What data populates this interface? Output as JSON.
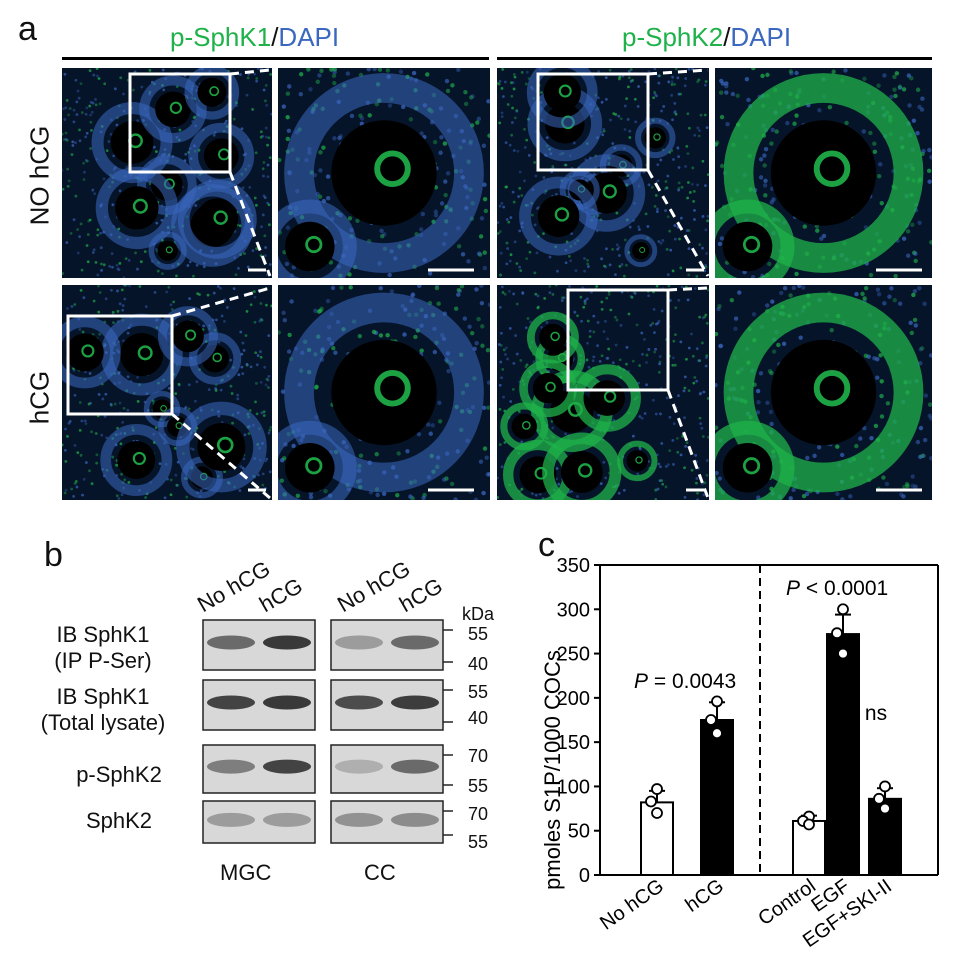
{
  "panel_a": {
    "letter": "a",
    "headers": [
      {
        "marker": "p-SphK1",
        "sep": "/",
        "stain": "DAPI"
      },
      {
        "marker": "p-SphK2",
        "sep": "/",
        "stain": "DAPI"
      }
    ],
    "row_labels": [
      "NO hCG",
      "hCG"
    ],
    "colors": {
      "marker_green": "#1fb24a",
      "dapi_blue": "#3a68c0",
      "background": "#06142a"
    }
  },
  "panel_b": {
    "letter": "b",
    "lanes": [
      "No hCG",
      "hCG"
    ],
    "mw_unit": "kDa",
    "blot_rows": [
      {
        "label_line1": "IB SphK1",
        "label_line2": "(IP P-Ser)",
        "mw_top": "55",
        "mw_bottom": "40"
      },
      {
        "label_line1": "IB SphK1",
        "label_line2": "(Total  lysate)",
        "mw_top": "55",
        "mw_bottom": "40"
      },
      {
        "label_line1": "p-SphK2",
        "label_line2": "",
        "mw_top": "70",
        "mw_bottom": "55"
      },
      {
        "label_line1": "SphK2",
        "label_line2": "",
        "mw_top": "70",
        "mw_bottom": "55"
      }
    ],
    "groups": [
      "MGC",
      "CC"
    ]
  },
  "panel_c": {
    "letter": "c",
    "chart_data": {
      "type": "bar",
      "ylabel": "pmoles S1P/1000 COCs",
      "ylim": [
        0,
        350
      ],
      "yticks": [
        0,
        50,
        100,
        150,
        200,
        250,
        300,
        350
      ],
      "categories": [
        "No hCG",
        "hCG",
        "Control",
        "EGF",
        "EGF+SKI-II"
      ],
      "values": [
        82,
        175,
        61,
        272,
        86
      ],
      "errors": [
        13,
        20,
        6,
        22,
        12
      ],
      "points": [
        [
          97,
          83,
          70
        ],
        [
          196,
          175,
          160
        ],
        [
          66,
          61,
          57
        ],
        [
          300,
          273,
          250
        ],
        [
          100,
          86,
          75
        ]
      ],
      "bar_colors": [
        "#ffffff",
        "#000000",
        "#ffffff",
        "#000000",
        "#000000"
      ],
      "annotations": [
        {
          "p_label": "P",
          "text": " = 0.0043"
        },
        {
          "p_label": "P",
          "text": " < 0.0001"
        },
        {
          "p_label": "",
          "text": "ns"
        }
      ]
    }
  }
}
